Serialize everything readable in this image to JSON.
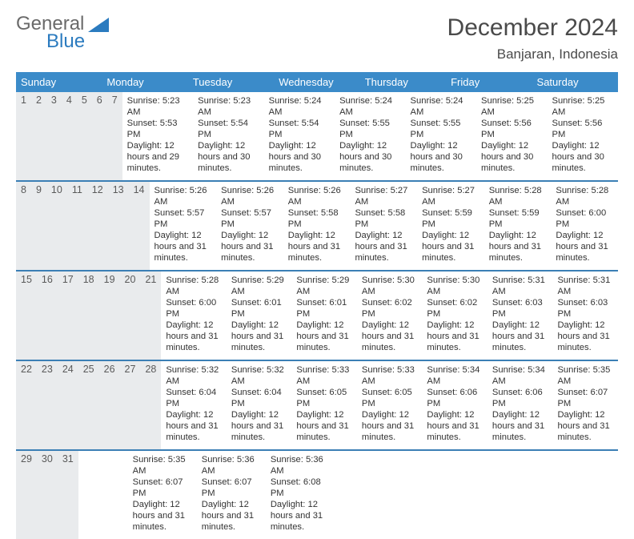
{
  "header": {
    "logo_text1": "General",
    "logo_text2": "Blue",
    "month_title": "December 2024",
    "location": "Banjaran, Indonesia"
  },
  "colors": {
    "header_bar": "#3b8bc9",
    "week_border": "#3b7fb5",
    "daynum_bg": "#e9ebed",
    "logo_gray": "#6a6a6a",
    "logo_blue": "#2b7bbf",
    "text": "#333333"
  },
  "day_headers": [
    "Sunday",
    "Monday",
    "Tuesday",
    "Wednesday",
    "Thursday",
    "Friday",
    "Saturday"
  ],
  "weeks": [
    [
      {
        "n": "1",
        "sr": "5:23 AM",
        "ss": "5:53 PM",
        "dl": "12 hours and 29 minutes."
      },
      {
        "n": "2",
        "sr": "5:23 AM",
        "ss": "5:54 PM",
        "dl": "12 hours and 30 minutes."
      },
      {
        "n": "3",
        "sr": "5:24 AM",
        "ss": "5:54 PM",
        "dl": "12 hours and 30 minutes."
      },
      {
        "n": "4",
        "sr": "5:24 AM",
        "ss": "5:55 PM",
        "dl": "12 hours and 30 minutes."
      },
      {
        "n": "5",
        "sr": "5:24 AM",
        "ss": "5:55 PM",
        "dl": "12 hours and 30 minutes."
      },
      {
        "n": "6",
        "sr": "5:25 AM",
        "ss": "5:56 PM",
        "dl": "12 hours and 30 minutes."
      },
      {
        "n": "7",
        "sr": "5:25 AM",
        "ss": "5:56 PM",
        "dl": "12 hours and 30 minutes."
      }
    ],
    [
      {
        "n": "8",
        "sr": "5:26 AM",
        "ss": "5:57 PM",
        "dl": "12 hours and 31 minutes."
      },
      {
        "n": "9",
        "sr": "5:26 AM",
        "ss": "5:57 PM",
        "dl": "12 hours and 31 minutes."
      },
      {
        "n": "10",
        "sr": "5:26 AM",
        "ss": "5:58 PM",
        "dl": "12 hours and 31 minutes."
      },
      {
        "n": "11",
        "sr": "5:27 AM",
        "ss": "5:58 PM",
        "dl": "12 hours and 31 minutes."
      },
      {
        "n": "12",
        "sr": "5:27 AM",
        "ss": "5:59 PM",
        "dl": "12 hours and 31 minutes."
      },
      {
        "n": "13",
        "sr": "5:28 AM",
        "ss": "5:59 PM",
        "dl": "12 hours and 31 minutes."
      },
      {
        "n": "14",
        "sr": "5:28 AM",
        "ss": "6:00 PM",
        "dl": "12 hours and 31 minutes."
      }
    ],
    [
      {
        "n": "15",
        "sr": "5:28 AM",
        "ss": "6:00 PM",
        "dl": "12 hours and 31 minutes."
      },
      {
        "n": "16",
        "sr": "5:29 AM",
        "ss": "6:01 PM",
        "dl": "12 hours and 31 minutes."
      },
      {
        "n": "17",
        "sr": "5:29 AM",
        "ss": "6:01 PM",
        "dl": "12 hours and 31 minutes."
      },
      {
        "n": "18",
        "sr": "5:30 AM",
        "ss": "6:02 PM",
        "dl": "12 hours and 31 minutes."
      },
      {
        "n": "19",
        "sr": "5:30 AM",
        "ss": "6:02 PM",
        "dl": "12 hours and 31 minutes."
      },
      {
        "n": "20",
        "sr": "5:31 AM",
        "ss": "6:03 PM",
        "dl": "12 hours and 31 minutes."
      },
      {
        "n": "21",
        "sr": "5:31 AM",
        "ss": "6:03 PM",
        "dl": "12 hours and 31 minutes."
      }
    ],
    [
      {
        "n": "22",
        "sr": "5:32 AM",
        "ss": "6:04 PM",
        "dl": "12 hours and 31 minutes."
      },
      {
        "n": "23",
        "sr": "5:32 AM",
        "ss": "6:04 PM",
        "dl": "12 hours and 31 minutes."
      },
      {
        "n": "24",
        "sr": "5:33 AM",
        "ss": "6:05 PM",
        "dl": "12 hours and 31 minutes."
      },
      {
        "n": "25",
        "sr": "5:33 AM",
        "ss": "6:05 PM",
        "dl": "12 hours and 31 minutes."
      },
      {
        "n": "26",
        "sr": "5:34 AM",
        "ss": "6:06 PM",
        "dl": "12 hours and 31 minutes."
      },
      {
        "n": "27",
        "sr": "5:34 AM",
        "ss": "6:06 PM",
        "dl": "12 hours and 31 minutes."
      },
      {
        "n": "28",
        "sr": "5:35 AM",
        "ss": "6:07 PM",
        "dl": "12 hours and 31 minutes."
      }
    ],
    [
      {
        "n": "29",
        "sr": "5:35 AM",
        "ss": "6:07 PM",
        "dl": "12 hours and 31 minutes."
      },
      {
        "n": "30",
        "sr": "5:36 AM",
        "ss": "6:07 PM",
        "dl": "12 hours and 31 minutes."
      },
      {
        "n": "31",
        "sr": "5:36 AM",
        "ss": "6:08 PM",
        "dl": "12 hours and 31 minutes."
      },
      null,
      null,
      null,
      null
    ]
  ],
  "labels": {
    "sunrise": "Sunrise: ",
    "sunset": "Sunset: ",
    "daylight": "Daylight: "
  }
}
